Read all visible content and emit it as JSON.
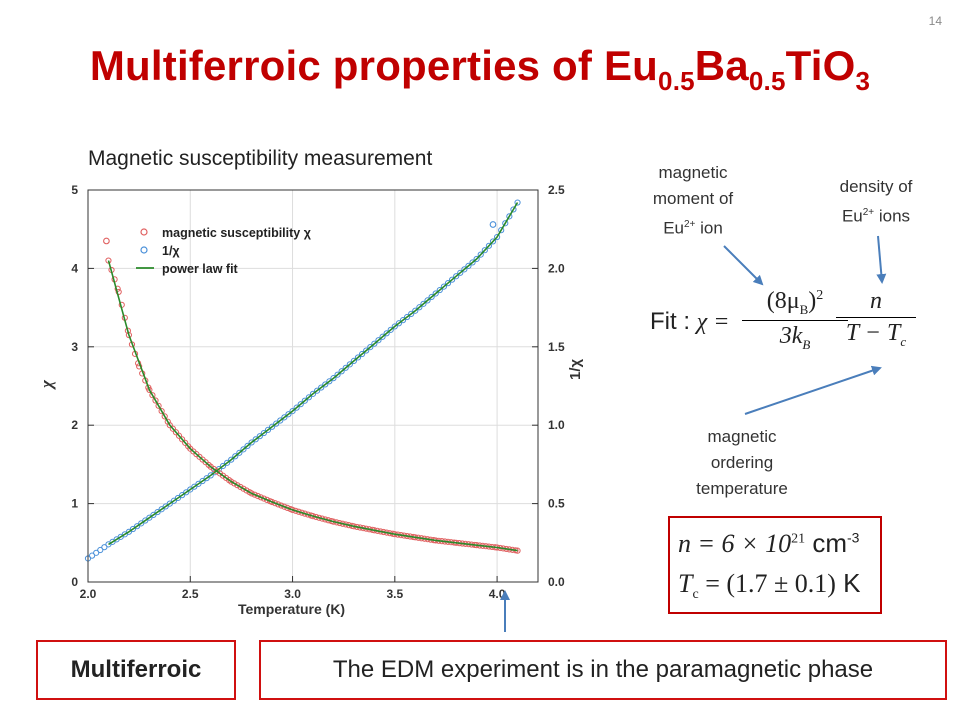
{
  "slide": {
    "number": "14",
    "title_main": "Multiferroic properties of Eu",
    "title_sub1": "0.5",
    "title_mid": "Ba",
    "title_sub2": "0.5",
    "title_end": "TiO",
    "title_sub3": "3",
    "subtitle": "Magnetic susceptibility measurement"
  },
  "annotations": {
    "moment_line1": "magnetic",
    "moment_line2": "moment of",
    "moment_line3": "Eu",
    "moment_sup": "2+",
    "moment_tail": " ion",
    "density_line1": "density of",
    "density_line2": "Eu",
    "density_sup": "2+",
    "density_tail": " ions",
    "ordering_line1": "magnetic",
    "ordering_line2": "ordering",
    "ordering_line3": "temperature"
  },
  "formula": {
    "fit_label": "Fit :",
    "chi": "χ =",
    "numerator": "(8μ",
    "numerator_sub": "B",
    "numerator_tail": ")",
    "numerator_pow": "2",
    "denominator": "3k",
    "denominator_sub": "B",
    "numerator2": "n",
    "denominator2": "T − T",
    "denominator2_sub": "c"
  },
  "results": {
    "n_expr": "n = 6 × 10",
    "n_pow": "21",
    "n_unit": " cm",
    "n_unit_pow": "-3",
    "tc_expr": "T",
    "tc_sub": "c",
    "tc_value": " = (1.7 ± 0.1)",
    "tc_unit": " K"
  },
  "boxes": {
    "left": "Multiferroic",
    "right": "The EDM experiment is in the paramagnetic phase"
  },
  "colors": {
    "title": "#c00000",
    "box_border": "#d01010",
    "arrow": "#4a7ebb",
    "chi_marker": "#e06060",
    "inv_marker": "#4a90d9",
    "fit_line": "#2a8a2a"
  },
  "chart_data": {
    "type": "scatter",
    "xlabel": "Temperature (K)",
    "ylabel_left": "χ",
    "ylabel_right": "1/χ",
    "xlim": [
      2.0,
      4.2
    ],
    "ylim_left": [
      0,
      5
    ],
    "ylim_right": [
      0,
      2.5
    ],
    "x_ticks": [
      "2.0",
      "2.5",
      "3.0",
      "3.5",
      "4.0"
    ],
    "y_ticks_left": [
      "0",
      "1",
      "2",
      "3",
      "4",
      "5"
    ],
    "y_ticks_right": [
      "0.0",
      "0.5",
      "1.0",
      "1.5",
      "2.0",
      "2.5"
    ],
    "legend_position": "top-left",
    "series": [
      {
        "name": "magnetic susceptibility χ",
        "axis": "left",
        "x": [
          2.1,
          2.15,
          2.2,
          2.25,
          2.3,
          2.4,
          2.5,
          2.6,
          2.7,
          2.8,
          2.9,
          3.0,
          3.1,
          3.2,
          3.3,
          3.4,
          3.5,
          3.6,
          3.7,
          3.8,
          3.9,
          4.0,
          4.1
        ],
        "y": [
          4.1,
          3.7,
          3.15,
          2.75,
          2.45,
          2.0,
          1.7,
          1.47,
          1.28,
          1.13,
          1.02,
          0.92,
          0.84,
          0.77,
          0.71,
          0.66,
          0.61,
          0.57,
          0.53,
          0.5,
          0.47,
          0.44,
          0.4
        ]
      },
      {
        "name": "1/χ",
        "axis": "right",
        "x": [
          2.0,
          2.1,
          2.2,
          2.3,
          2.4,
          2.5,
          2.6,
          2.7,
          2.8,
          2.9,
          3.0,
          3.1,
          3.2,
          3.3,
          3.4,
          3.5,
          3.6,
          3.7,
          3.8,
          3.9,
          4.0,
          4.1
        ],
        "y": [
          0.15,
          0.24,
          0.32,
          0.41,
          0.5,
          0.59,
          0.68,
          0.78,
          0.89,
          0.99,
          1.09,
          1.2,
          1.3,
          1.41,
          1.52,
          1.63,
          1.73,
          1.84,
          1.95,
          2.06,
          2.2,
          2.42
        ]
      },
      {
        "name": "power law fit",
        "axis": "both",
        "x": [
          2.1,
          2.2,
          2.3,
          2.4,
          2.5,
          2.6,
          2.7,
          2.8,
          2.9,
          3.0,
          3.1,
          3.2,
          3.3,
          3.4,
          3.5,
          3.6,
          3.7,
          3.8,
          3.9,
          4.0,
          4.1
        ],
        "y": [
          4.1,
          3.15,
          2.45,
          2.0,
          1.7,
          1.47,
          1.28,
          1.13,
          1.02,
          0.92,
          0.84,
          0.77,
          0.71,
          0.66,
          0.61,
          0.57,
          0.53,
          0.5,
          0.47,
          0.44,
          0.4
        ]
      }
    ],
    "outliers": [
      {
        "series": "magnetic susceptibility χ",
        "x": 2.09,
        "y": 4.35
      },
      {
        "series": "1/χ",
        "x": 3.98,
        "y": 2.28
      }
    ]
  }
}
